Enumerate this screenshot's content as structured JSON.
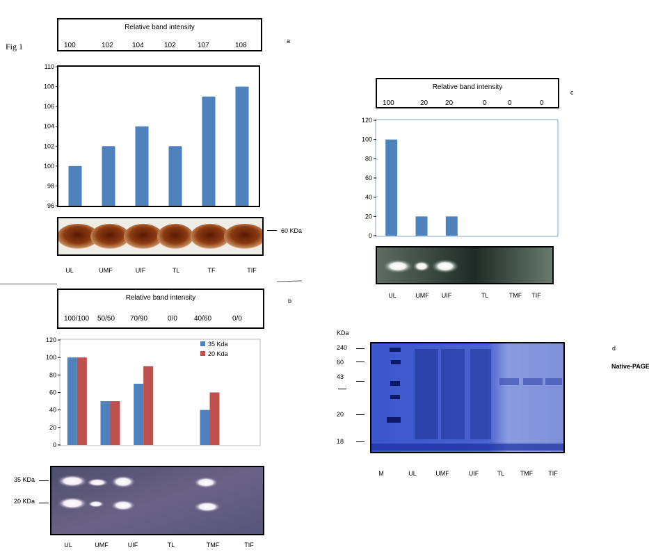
{
  "figure_label": "Fig 1",
  "panels": {
    "a": {
      "letter": "a",
      "intensity_title": "Relative band intensity",
      "intensity_values": [
        "100",
        "102",
        "104",
        "102",
        "107",
        "108"
      ],
      "gel_marker": "60 KDa",
      "lanes": [
        "UL",
        "UMF",
        "UIF",
        "TL",
        "TF",
        "TIF"
      ],
      "bar_color": "#4f81bd"
    },
    "b": {
      "letter": "b",
      "intensity_title": "Relative band intensity",
      "intensity_values": [
        "100/100",
        "50/50",
        "70/90",
        "0/0",
        "40/60",
        "0/0"
      ],
      "gel_markers": [
        "35 KDa",
        "20 KDa"
      ],
      "lanes": [
        "UL",
        "UMF",
        "UIF",
        "TL",
        "TMF",
        "TIF"
      ],
      "colors": [
        "#4f81bd",
        "#c0504d"
      ]
    },
    "c": {
      "letter": "c",
      "intensity_title": "Relative band intensity",
      "intensity_values": [
        "100",
        "20",
        "20",
        "0",
        "0",
        "0"
      ],
      "lanes": [
        "UL",
        "UMF",
        "UIF",
        "TL",
        "TMF",
        "TIF"
      ],
      "bar_color": "#4f81bd"
    },
    "d": {
      "letter": "d",
      "label": "Native-PAGE",
      "unit": "KDa",
      "markers": [
        "240",
        "60",
        "43",
        "20",
        "18"
      ],
      "lanes": [
        "M",
        "UL",
        "UMF",
        "UIF",
        "TL",
        "TMF",
        "TIF"
      ]
    }
  },
  "chart_data": [
    {
      "type": "bar",
      "panel": "a",
      "categories": [
        "UL",
        "UMF",
        "UIF",
        "TL",
        "TF",
        "TIF"
      ],
      "values": [
        100,
        102,
        104,
        102,
        107,
        108
      ],
      "title": "",
      "xlabel": "",
      "ylabel": "",
      "ylim": [
        96,
        110
      ],
      "yticks": [
        96,
        98,
        100,
        102,
        104,
        106,
        108,
        110
      ],
      "grid": false
    },
    {
      "type": "bar",
      "panel": "b",
      "categories": [
        "UL",
        "UMF",
        "UIF",
        "TL",
        "TMF",
        "TIF"
      ],
      "series": [
        {
          "name": "35 Kda",
          "values": [
            100,
            50,
            70,
            0,
            40,
            0
          ]
        },
        {
          "name": "20 Kda",
          "values": [
            100,
            50,
            90,
            0,
            60,
            0
          ]
        }
      ],
      "title": "",
      "xlabel": "",
      "ylabel": "",
      "ylim": [
        0,
        120
      ],
      "yticks": [
        0,
        20,
        40,
        60,
        80,
        100,
        120
      ],
      "grid": false,
      "legend": "top-right"
    },
    {
      "type": "bar",
      "panel": "c",
      "categories": [
        "UL",
        "UMF",
        "UIF",
        "TL",
        "TMF",
        "TIF"
      ],
      "values": [
        100,
        20,
        20,
        0,
        0,
        0
      ],
      "title": "",
      "xlabel": "",
      "ylabel": "",
      "ylim": [
        0,
        120
      ],
      "yticks": [
        0,
        20,
        40,
        60,
        80,
        100,
        120
      ],
      "grid": false
    }
  ]
}
